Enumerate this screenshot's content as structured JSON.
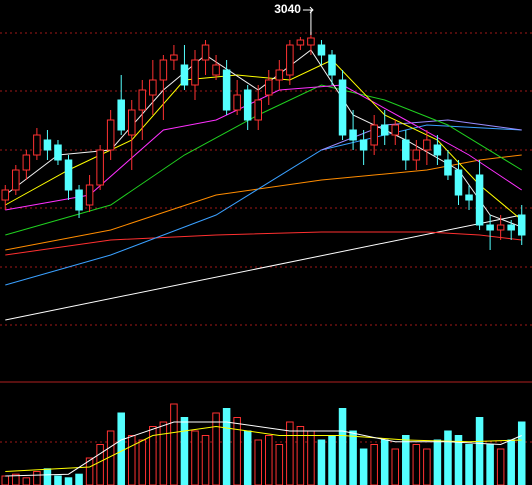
{
  "chart_data": {
    "type": "candlestick",
    "annotation": "3040",
    "ylim": [
      2695,
      3075
    ],
    "up_color": "#ff3232",
    "down_color": "#54ffff",
    "open": [
      2875,
      2885,
      2905,
      2920,
      2935,
      2930,
      2915,
      2885,
      2870,
      2890,
      2925,
      2975,
      2940,
      2965,
      2980,
      2995,
      3015,
      3010,
      2990,
      3015,
      3000,
      3005,
      2965,
      2985,
      2955,
      2980,
      2995,
      3000,
      3030,
      3030,
      3030,
      3020,
      2995,
      2945,
      2935,
      2930,
      2950,
      2940,
      2935,
      2915,
      2925,
      2930,
      2915,
      2905,
      2880,
      2900,
      2850,
      2845,
      2850,
      2860
    ],
    "high": [
      2890,
      2910,
      2925,
      2947,
      2945,
      2935,
      2920,
      2890,
      2900,
      2930,
      2965,
      3000,
      2975,
      2995,
      3015,
      3020,
      3030,
      3030,
      3025,
      3035,
      3020,
      3015,
      2995,
      2990,
      2990,
      3005,
      3015,
      3035,
      3038,
      3040,
      3035,
      3025,
      3005,
      2965,
      2945,
      2960,
      2965,
      2955,
      2945,
      2935,
      2945,
      2940,
      2925,
      2915,
      2890,
      2915,
      2860,
      2860,
      2855,
      2870
    ],
    "low": [
      2865,
      2880,
      2895,
      2915,
      2915,
      2910,
      2875,
      2857,
      2863,
      2885,
      2915,
      2940,
      2905,
      2935,
      2960,
      2955,
      3005,
      2985,
      2975,
      3000,
      2995,
      2960,
      2960,
      2945,
      2945,
      2970,
      2985,
      2990,
      3025,
      3020,
      3010,
      2990,
      2935,
      2925,
      2910,
      2920,
      2930,
      2930,
      2905,
      2905,
      2910,
      2910,
      2895,
      2870,
      2865,
      2845,
      2825,
      2835,
      2835,
      2830
    ],
    "close": [
      2885,
      2905,
      2920,
      2940,
      2925,
      2915,
      2885,
      2865,
      2890,
      2925,
      2955,
      2945,
      2965,
      2985,
      2995,
      3015,
      3020,
      2990,
      3015,
      3030,
      3010,
      2965,
      2980,
      2955,
      2975,
      2995,
      3005,
      3030,
      3035,
      3037,
      3020,
      3000,
      2940,
      2935,
      2925,
      2950,
      2940,
      2950,
      2915,
      2925,
      2935,
      2920,
      2900,
      2880,
      2875,
      2850,
      2845,
      2850,
      2845,
      2840
    ],
    "lines": [
      {
        "color": "#ffffff",
        "x": [
          0,
          49
        ],
        "values": [
          2755,
          2860
        ]
      },
      {
        "color": "#ff3030",
        "x": [
          0,
          10,
          20,
          30,
          40,
          45,
          49
        ],
        "values": [
          2820,
          2835,
          2840,
          2843,
          2843,
          2840,
          2835
        ]
      },
      {
        "color": "#ff8c00",
        "x": [
          0,
          10,
          20,
          30,
          40,
          45,
          49
        ],
        "values": [
          2825,
          2845,
          2880,
          2895,
          2905,
          2915,
          2920
        ]
      },
      {
        "color": "#3aa0ff",
        "x": [
          0,
          10,
          20,
          30,
          40,
          49
        ],
        "values": [
          2790,
          2820,
          2860,
          2925,
          2950,
          2945
        ]
      },
      {
        "color": "#9a8cff",
        "x": [
          30,
          36,
          42,
          49
        ],
        "values": [
          2925,
          2950,
          2955,
          2945
        ]
      },
      {
        "color": "#20d020",
        "x": [
          0,
          10,
          17,
          24,
          30,
          36,
          42,
          49
        ],
        "values": [
          2840,
          2870,
          2920,
          2960,
          2990,
          2975,
          2950,
          2905
        ]
      },
      {
        "color": "#ff30ff",
        "x": [
          0,
          8,
          15,
          20,
          26,
          32,
          38,
          44,
          49
        ],
        "values": [
          2865,
          2880,
          2945,
          2955,
          2985,
          2990,
          2955,
          2920,
          2885
        ]
      },
      {
        "color": "#ffff00",
        "x": [
          0,
          6,
          12,
          17,
          22,
          27,
          31,
          36,
          41,
          45,
          49
        ],
        "values": [
          2870,
          2905,
          2935,
          2995,
          3000,
          2995,
          3015,
          2960,
          2935,
          2890,
          2855
        ]
      },
      {
        "color": "#f0f0f0",
        "x": [
          0,
          5,
          10,
          15,
          19,
          24,
          29,
          33,
          38,
          43,
          46,
          49
        ],
        "values": [
          2880,
          2920,
          2925,
          2985,
          3020,
          2985,
          3025,
          2960,
          2935,
          2905,
          2860,
          2848
        ]
      }
    ],
    "volume": {
      "ylim": [
        0,
        100
      ],
      "values": [
        10,
        12,
        8,
        15,
        18,
        10,
        8,
        12,
        30,
        45,
        60,
        80,
        55,
        50,
        65,
        70,
        90,
        75,
        60,
        55,
        80,
        85,
        75,
        60,
        50,
        55,
        45,
        70,
        65,
        60,
        50,
        55,
        85,
        60,
        40,
        45,
        50,
        40,
        55,
        45,
        40,
        50,
        60,
        55,
        45,
        75,
        45,
        40,
        50,
        70
      ],
      "lines": [
        {
          "color": "#ffff00",
          "x": [
            0,
            8,
            14,
            20,
            26,
            32,
            38,
            44,
            49
          ],
          "values": [
            15,
            20,
            55,
            65,
            55,
            55,
            50,
            48,
            50
          ]
        },
        {
          "color": "#ffffff",
          "x": [
            0,
            6,
            11,
            16,
            21,
            27,
            32,
            37,
            42,
            47,
            49
          ],
          "values": [
            10,
            12,
            50,
            70,
            70,
            60,
            60,
            48,
            48,
            45,
            55
          ]
        }
      ]
    }
  }
}
